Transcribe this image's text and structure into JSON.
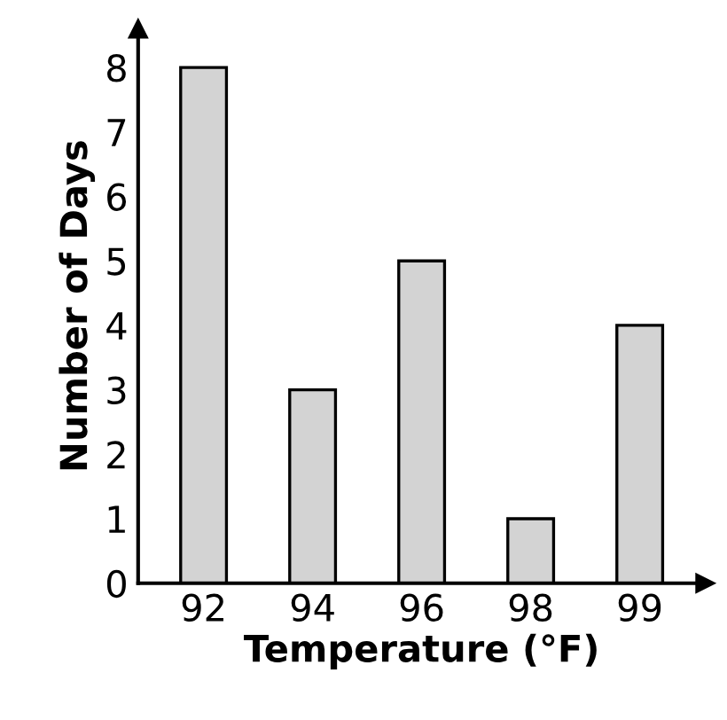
{
  "chart_data": {
    "type": "bar",
    "xlabel": "Temperature (°F)",
    "ylabel": "Number of Days",
    "categories": [
      "92",
      "94",
      "96",
      "98",
      "99"
    ],
    "values": [
      8,
      3,
      5,
      1,
      4
    ],
    "color": "#d3d3d3",
    "ylim": [
      0,
      8.6
    ],
    "yticks": [
      0,
      1,
      2,
      3,
      4,
      5,
      6,
      7,
      8
    ],
    "grid": false
  }
}
